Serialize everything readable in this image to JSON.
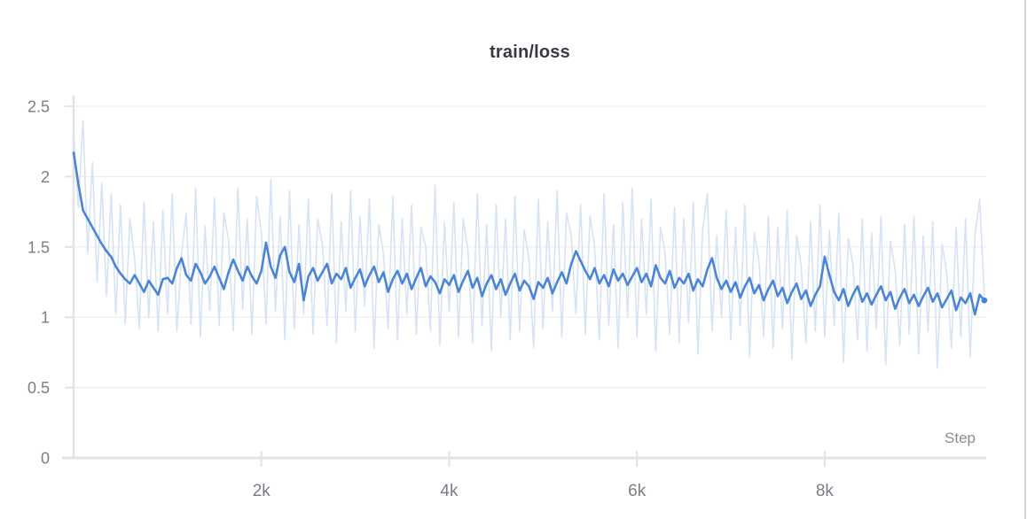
{
  "chart_data": {
    "type": "line",
    "title": "train/loss",
    "xlabel": "Step",
    "xlim": [
      0,
      9720
    ],
    "ylim": [
      0,
      2.5
    ],
    "x_start": 0,
    "x_step": 50,
    "grid": true,
    "legend": "none",
    "xticks": [
      {
        "value": 2000,
        "label": "2k"
      },
      {
        "value": 4000,
        "label": "4k"
      },
      {
        "value": 6000,
        "label": "6k"
      },
      {
        "value": 8000,
        "label": "8k"
      }
    ],
    "yticks": [
      {
        "value": 0,
        "label": "0"
      },
      {
        "value": 0.5,
        "label": "0.5"
      },
      {
        "value": 1,
        "label": "1"
      },
      {
        "value": 1.5,
        "label": "1.5"
      },
      {
        "value": 2,
        "label": "2"
      },
      {
        "value": 2.5,
        "label": "2.5"
      }
    ],
    "colors": {
      "smoothed_line": "#4a85d8",
      "raw_line": "#d6e3f4",
      "grid": "#ededf0",
      "axis": "#e3e3e7",
      "tick_label": "#7c7c87",
      "title": "#363a41",
      "step_label": "#8b8b95",
      "panel_border": "#d5d5d9"
    },
    "series": [
      {
        "name": "raw",
        "color": "#d6e3f4",
        "width": 1.6,
        "values": [
          2.32,
          1.78,
          2.4,
          1.45,
          2.1,
          1.25,
          1.95,
          1.15,
          1.88,
          1.02,
          1.8,
          0.95,
          1.7,
          1.42,
          0.92,
          1.82,
          1.0,
          1.68,
          0.9,
          1.76,
          1.02,
          1.88,
          0.9,
          1.45,
          1.74,
          0.95,
          1.92,
          0.86,
          1.65,
          1.05,
          1.85,
          0.94,
          1.74,
          1.55,
          0.9,
          1.92,
          1.06,
          1.7,
          0.88,
          1.86,
          1.6,
          0.95,
          1.98,
          1.04,
          1.72,
          0.84,
          1.9,
          0.92,
          1.66,
          1.02,
          1.84,
          0.88,
          1.7,
          1.52,
          0.94,
          1.88,
          0.82,
          1.68,
          1.04,
          1.9,
          0.9,
          1.72,
          1.08,
          1.84,
          0.78,
          1.66,
          1.45,
          0.92,
          1.86,
          0.84,
          1.7,
          1.02,
          1.8,
          0.88,
          1.64,
          1.5,
          0.9,
          1.94,
          0.8,
          1.68,
          1.04,
          1.82,
          0.86,
          1.7,
          1.48,
          0.82,
          1.88,
          0.94,
          1.66,
          0.76,
          1.8,
          1.0,
          1.7,
          0.84,
          1.86,
          0.9,
          1.62,
          1.42,
          0.78,
          1.84,
          0.92,
          1.68,
          1.04,
          1.9,
          0.86,
          1.74,
          1.58,
          1.02,
          1.8,
          0.88,
          1.72,
          1.5,
          0.84,
          1.88,
          0.94,
          1.66,
          0.78,
          1.82,
          1.0,
          1.92,
          0.86,
          1.7,
          1.02,
          1.84,
          0.76,
          1.64,
          1.46,
          0.88,
          1.78,
          0.82,
          1.7,
          0.96,
          1.82,
          0.74,
          1.62,
          1.88,
          0.9,
          1.58,
          1.0,
          1.76,
          0.84,
          1.64,
          0.94,
          1.8,
          0.72,
          1.6,
          1.4,
          0.86,
          1.72,
          0.78,
          1.64,
          0.92,
          1.76,
          0.7,
          1.58,
          1.36,
          0.82,
          1.68,
          0.9,
          1.8,
          0.86,
          1.62,
          0.94,
          1.74,
          0.68,
          1.56,
          1.38,
          0.84,
          1.7,
          0.76,
          1.6,
          0.92,
          1.72,
          0.66,
          1.54,
          1.34,
          0.8,
          1.66,
          0.88,
          1.72,
          0.74,
          1.58,
          0.9,
          1.68,
          0.64,
          1.52,
          1.32,
          0.78,
          1.64,
          0.86,
          1.7,
          0.72,
          1.58,
          1.84,
          1.15
        ]
      },
      {
        "name": "smoothed",
        "color": "#4a85d8",
        "width": 2.6,
        "values": [
          2.17,
          1.95,
          1.76,
          1.7,
          1.64,
          1.58,
          1.52,
          1.47,
          1.43,
          1.36,
          1.31,
          1.27,
          1.24,
          1.3,
          1.24,
          1.18,
          1.26,
          1.21,
          1.16,
          1.27,
          1.28,
          1.24,
          1.35,
          1.42,
          1.3,
          1.26,
          1.38,
          1.32,
          1.24,
          1.29,
          1.36,
          1.28,
          1.2,
          1.32,
          1.41,
          1.33,
          1.26,
          1.36,
          1.29,
          1.24,
          1.33,
          1.53,
          1.36,
          1.28,
          1.44,
          1.5,
          1.32,
          1.25,
          1.38,
          1.12,
          1.29,
          1.35,
          1.26,
          1.32,
          1.38,
          1.24,
          1.31,
          1.27,
          1.35,
          1.21,
          1.28,
          1.34,
          1.22,
          1.3,
          1.36,
          1.25,
          1.32,
          1.18,
          1.27,
          1.33,
          1.24,
          1.31,
          1.2,
          1.28,
          1.35,
          1.22,
          1.29,
          1.25,
          1.17,
          1.27,
          1.23,
          1.3,
          1.18,
          1.26,
          1.33,
          1.21,
          1.28,
          1.15,
          1.24,
          1.3,
          1.2,
          1.27,
          1.16,
          1.24,
          1.31,
          1.19,
          1.26,
          1.22,
          1.13,
          1.25,
          1.21,
          1.28,
          1.17,
          1.25,
          1.32,
          1.24,
          1.38,
          1.47,
          1.4,
          1.33,
          1.27,
          1.35,
          1.24,
          1.3,
          1.22,
          1.34,
          1.26,
          1.31,
          1.23,
          1.29,
          1.35,
          1.25,
          1.31,
          1.22,
          1.37,
          1.28,
          1.24,
          1.33,
          1.21,
          1.28,
          1.24,
          1.31,
          1.19,
          1.27,
          1.22,
          1.34,
          1.42,
          1.28,
          1.2,
          1.26,
          1.18,
          1.25,
          1.14,
          1.22,
          1.28,
          1.17,
          1.23,
          1.12,
          1.2,
          1.26,
          1.15,
          1.21,
          1.1,
          1.18,
          1.24,
          1.13,
          1.19,
          1.08,
          1.16,
          1.22,
          1.43,
          1.3,
          1.18,
          1.12,
          1.2,
          1.08,
          1.16,
          1.22,
          1.11,
          1.17,
          1.09,
          1.16,
          1.22,
          1.12,
          1.18,
          1.06,
          1.14,
          1.2,
          1.1,
          1.16,
          1.08,
          1.15,
          1.21,
          1.11,
          1.17,
          1.07,
          1.13,
          1.19,
          1.05,
          1.14,
          1.1,
          1.17,
          1.02,
          1.16,
          1.12
        ]
      }
    ]
  }
}
